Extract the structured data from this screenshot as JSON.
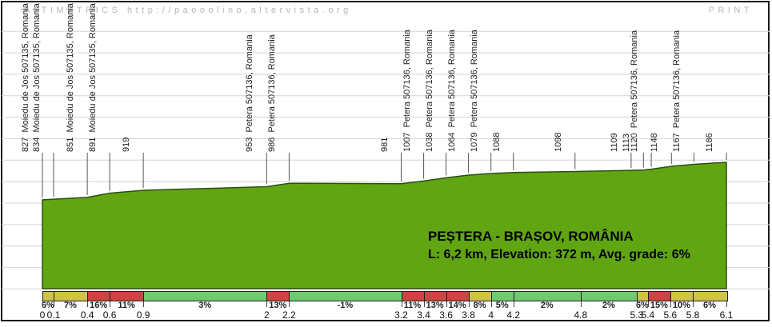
{
  "watermark": {
    "left_text": "ALTIMETRICS  http://paooolino.altervista.org",
    "right_text": "PRINT"
  },
  "info_box": {
    "title": "PEȘTERA - BRAȘOV, ROMÂNIA",
    "stats_line": "L: 6,2 km, Elevation: 372 m, Avg. grade: 6%"
  },
  "colors": {
    "profile_fill": "#61a512",
    "profile_stroke": "#2d4f10",
    "grade_green": "#6dcb6d",
    "grade_yellow": "#d0c14a",
    "grade_red": "#cc4444",
    "gridline": "#d4d4d4",
    "tick": "#555555",
    "watermark": "#b7b7b7"
  },
  "chart_data": {
    "type": "area",
    "title": "PEȘTERA - BRAȘOV, ROMÂNIA",
    "route_length_km": "6,2",
    "total_elevation_m": 372,
    "avg_grade_pct": 6,
    "x_unit": "km",
    "y_unit": "m",
    "xlim": [
      0,
      6.1
    ],
    "ylim_profile": [
      827,
      1186
    ],
    "grid": "horizontal",
    "profile_points": [
      {
        "km": 0,
        "elev": 827,
        "name": "Moiedu de Jos 507135, Romania"
      },
      {
        "km": 0.1,
        "elev": 834,
        "name": "Moiedu de Jos 507135, Romania"
      },
      {
        "km": 0.4,
        "elev": 851,
        "name": "Moiedu de Jos 507135, Romania"
      },
      {
        "km": 0.6,
        "elev": 891,
        "name": "Moiedu de Jos 507135, Romania"
      },
      {
        "km": 0.9,
        "elev": 919,
        "name": ""
      },
      {
        "km": 2,
        "elev": 953,
        "name": "Petera 507136, Romania"
      },
      {
        "km": 2.2,
        "elev": 986,
        "name": "Petera 507136, Romania"
      },
      {
        "km": 3.2,
        "elev": 981,
        "name": ""
      },
      {
        "km": 3.4,
        "elev": 1007,
        "name": "Petera 507136, Romania"
      },
      {
        "km": 3.6,
        "elev": 1038,
        "name": "Petera 507136, Romania"
      },
      {
        "km": 3.8,
        "elev": 1064,
        "name": "Petera 507136, Romania"
      },
      {
        "km": 4,
        "elev": 1079,
        "name": "Petera 507136, Romania"
      },
      {
        "km": 4.2,
        "elev": 1088,
        "name": ""
      },
      {
        "km": 4.75,
        "elev": 1098,
        "name": ""
      },
      {
        "km": 5.25,
        "elev": 1109,
        "name": ""
      },
      {
        "km": 5.36,
        "elev": 1113,
        "name": ""
      },
      {
        "km": 5.43,
        "elev": 1120,
        "name": "Petera 507136, Romania"
      },
      {
        "km": 5.61,
        "elev": 1148,
        "name": ""
      },
      {
        "km": 5.81,
        "elev": 1167,
        "name": "Petera 507136, Romania"
      },
      {
        "km": 6.1,
        "elev": 1186,
        "name": ""
      }
    ],
    "grade_segments": [
      {
        "from_km": 0,
        "to_km": 0.1,
        "grade_label": "6%",
        "level": "yellow"
      },
      {
        "from_km": 0.1,
        "to_km": 0.4,
        "grade_label": "7%",
        "level": "yellow"
      },
      {
        "from_km": 0.4,
        "to_km": 0.6,
        "grade_label": "16%",
        "level": "red"
      },
      {
        "from_km": 0.6,
        "to_km": 0.9,
        "grade_label": "11%",
        "level": "red"
      },
      {
        "from_km": 0.9,
        "to_km": 2,
        "grade_label": "3%",
        "level": "green"
      },
      {
        "from_km": 2,
        "to_km": 2.2,
        "grade_label": "13%",
        "level": "red"
      },
      {
        "from_km": 2.2,
        "to_km": 3.2,
        "grade_label": "-1%",
        "level": "green"
      },
      {
        "from_km": 3.2,
        "to_km": 3.4,
        "grade_label": "11%",
        "level": "red"
      },
      {
        "from_km": 3.4,
        "to_km": 3.6,
        "grade_label": "13%",
        "level": "red"
      },
      {
        "from_km": 3.6,
        "to_km": 3.8,
        "grade_label": "14%",
        "level": "red"
      },
      {
        "from_km": 3.8,
        "to_km": 4,
        "grade_label": "8%",
        "level": "yellow"
      },
      {
        "from_km": 4,
        "to_km": 4.2,
        "grade_label": "5%",
        "level": "green"
      },
      {
        "from_km": 4.2,
        "to_km": 4.8,
        "grade_label": "2%",
        "level": "green"
      },
      {
        "from_km": 4.8,
        "to_km": 5.3,
        "grade_label": "2%",
        "level": "green"
      },
      {
        "from_km": 5.3,
        "to_km": 5.4,
        "grade_label": "6%",
        "level": "yellow"
      },
      {
        "from_km": 5.4,
        "to_km": 5.6,
        "grade_label": "15%",
        "level": "red"
      },
      {
        "from_km": 5.6,
        "to_km": 5.8,
        "grade_label": "10%",
        "level": "yellow"
      },
      {
        "from_km": 5.8,
        "to_km": 6.1,
        "grade_label": "6%",
        "level": "yellow"
      }
    ],
    "km_tick_labels": [
      "0",
      "0.1",
      "0.4",
      "0.6",
      "0.9",
      "2",
      "2.2",
      "3.2",
      "3.4",
      "3.6",
      "3.8",
      "4",
      "4.2",
      "4.8",
      "5.3",
      "5.4",
      "5.6",
      "5.8",
      "6.1"
    ]
  }
}
